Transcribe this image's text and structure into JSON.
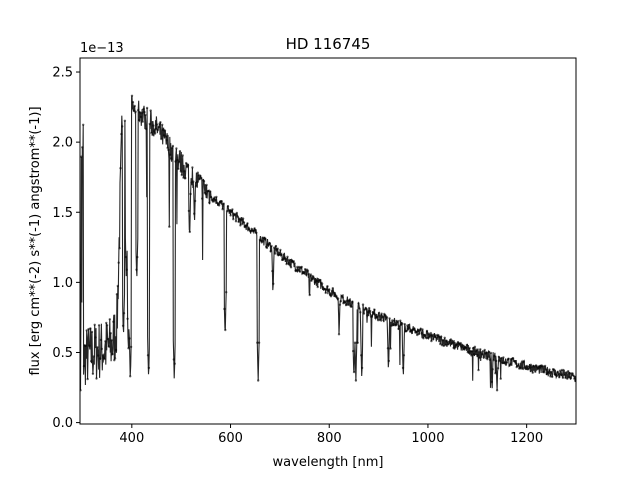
{
  "chart_data": {
    "type": "line",
    "title": "HD 116745",
    "xlabel": "wavelength [nm]",
    "ylabel": "flux [erg cm**(-2) s**(-1) angstrom**(-1)]",
    "y_offset_text": "1e−13",
    "xlim": [
      295,
      1300
    ],
    "ylim": [
      -0.01,
      2.6
    ],
    "y_scale_factor": 1e-13,
    "xticks": [
      400,
      600,
      800,
      1000,
      1200
    ],
    "xtick_labels": [
      "400",
      "600",
      "800",
      "1000",
      "1200"
    ],
    "yticks": [
      0.0,
      0.5,
      1.0,
      1.5,
      2.0,
      2.5
    ],
    "ytick_labels": [
      "0.0",
      "0.5",
      "1.0",
      "1.5",
      "2.0",
      "2.5"
    ],
    "grid": false,
    "series": [
      {
        "color": "#000000",
        "continuum": {
          "x": [
            300,
            320,
            340,
            360,
            370,
            380,
            390,
            400,
            420,
            450,
            480,
            500,
            550,
            600,
            650,
            700,
            750,
            800,
            850,
            900,
            950,
            1000,
            1050,
            1100,
            1150,
            1200,
            1250,
            1300
          ],
          "y": [
            0.45,
            0.5,
            0.52,
            0.55,
            0.7,
            2.05,
            2.3,
            2.25,
            2.2,
            2.1,
            1.95,
            1.85,
            1.65,
            1.5,
            1.35,
            1.2,
            1.07,
            0.94,
            0.84,
            0.76,
            0.69,
            0.62,
            0.56,
            0.5,
            0.45,
            0.4,
            0.36,
            0.32
          ]
        },
        "absorption_lines": {
          "x": [
            383,
            389,
            393,
            397,
            410,
            434,
            486,
            517,
            527,
            589,
            656,
            686,
            760,
            820,
            850,
            854,
            866,
            920,
            950,
            1083,
            1130,
            1140
          ],
          "y": [
            0.6,
            1.0,
            0.5,
            0.3,
            1.0,
            0.3,
            0.3,
            1.3,
            1.4,
            0.6,
            0.3,
            0.9,
            0.85,
            0.6,
            0.3,
            0.3,
            0.3,
            0.35,
            0.3,
            0.5,
            0.2,
            0.2
          ]
        }
      }
    ]
  }
}
